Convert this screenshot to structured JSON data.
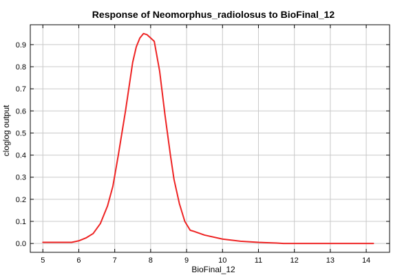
{
  "chart_data": {
    "type": "line",
    "title": "Response of Neomorphus_radiolosus to BioFinal_12",
    "xlabel": "BioFinal_12",
    "ylabel": "cloglog output",
    "xlim": [
      4.65,
      14.65
    ],
    "ylim": [
      -0.04,
      0.99
    ],
    "xticks": [
      5,
      6,
      7,
      8,
      9,
      10,
      11,
      12,
      13,
      14
    ],
    "yticks": [
      0.0,
      0.1,
      0.2,
      0.3,
      0.4,
      0.5,
      0.6,
      0.7,
      0.8,
      0.9
    ],
    "ytick_labels": [
      "0.0",
      "0.1",
      "0.2",
      "0.3",
      "0.4",
      "0.5",
      "0.6",
      "0.7",
      "0.8",
      "0.9"
    ],
    "grid": true,
    "series": [
      {
        "color": "#ee2222",
        "x": [
          5.0,
          5.5,
          5.8,
          6.0,
          6.2,
          6.4,
          6.6,
          6.8,
          6.95,
          7.1,
          7.3,
          7.5,
          7.6,
          7.7,
          7.8,
          7.9,
          8.0,
          8.1,
          8.25,
          8.4,
          8.55,
          8.65,
          8.8,
          8.95,
          9.1,
          9.2,
          9.5,
          10.0,
          10.5,
          11.0,
          11.5,
          11.7,
          12.0,
          13.0,
          14.2
        ],
        "y": [
          0.005,
          0.005,
          0.005,
          0.012,
          0.025,
          0.045,
          0.09,
          0.17,
          0.26,
          0.4,
          0.6,
          0.82,
          0.89,
          0.93,
          0.95,
          0.945,
          0.93,
          0.915,
          0.78,
          0.58,
          0.4,
          0.29,
          0.18,
          0.1,
          0.06,
          0.055,
          0.038,
          0.02,
          0.01,
          0.005,
          0.002,
          0.0,
          0.0,
          0.0,
          0.0
        ]
      }
    ]
  }
}
